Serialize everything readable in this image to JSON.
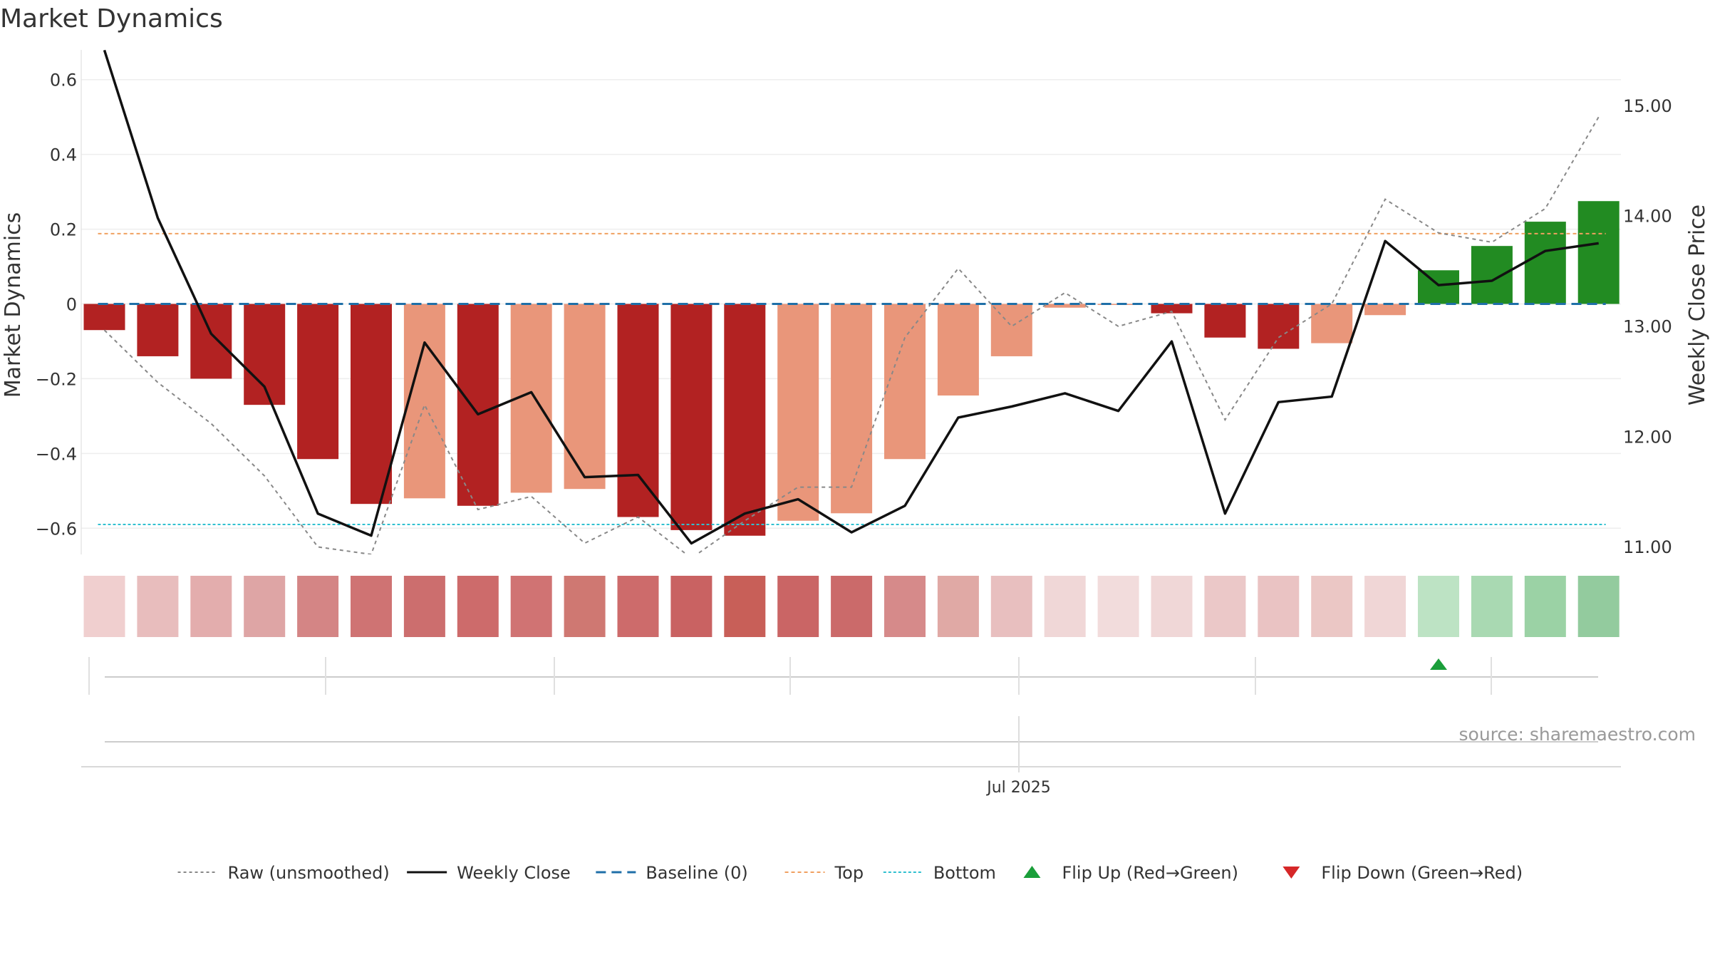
{
  "chart_data": {
    "type": "bar",
    "title": "Market Dynamics",
    "ylabel": "Market Dynamics",
    "y2label": "Weekly Close Price",
    "ylim": [
      -0.67,
      0.67
    ],
    "y2lim": [
      10.93,
      15.47
    ],
    "yticks": [
      {
        "v": 0.6,
        "label": "0.6"
      },
      {
        "v": 0.4,
        "label": "0.4"
      },
      {
        "v": 0.2,
        "label": "0.2"
      },
      {
        "v": 0,
        "label": "0"
      },
      {
        "v": -0.2,
        "label": "−0.2"
      },
      {
        "v": -0.4,
        "label": "−0.4"
      },
      {
        "v": -0.6,
        "label": "−0.6"
      }
    ],
    "y2ticks": [
      {
        "v": 15,
        "label": "15.00"
      },
      {
        "v": 14,
        "label": "14.00"
      },
      {
        "v": 13,
        "label": "13.00"
      },
      {
        "v": 12,
        "label": "12.00"
      },
      {
        "v": 11,
        "label": "11.00"
      }
    ],
    "grid": true,
    "bars": [
      {
        "value": -0.07,
        "color": "#b22222"
      },
      {
        "value": -0.14,
        "color": "#b22222"
      },
      {
        "value": -0.2,
        "color": "#b22222"
      },
      {
        "value": -0.27,
        "color": "#b22222"
      },
      {
        "value": -0.415,
        "color": "#b22222"
      },
      {
        "value": -0.535,
        "color": "#b22222"
      },
      {
        "value": -0.52,
        "color": "#e9967a"
      },
      {
        "value": -0.54,
        "color": "#b22222"
      },
      {
        "value": -0.505,
        "color": "#e9967a"
      },
      {
        "value": -0.495,
        "color": "#e9967a"
      },
      {
        "value": -0.57,
        "color": "#b22222"
      },
      {
        "value": -0.605,
        "color": "#b22222"
      },
      {
        "value": -0.62,
        "color": "#b22222"
      },
      {
        "value": -0.58,
        "color": "#e9967a"
      },
      {
        "value": -0.56,
        "color": "#e9967a"
      },
      {
        "value": -0.415,
        "color": "#e9967a"
      },
      {
        "value": -0.245,
        "color": "#e9967a"
      },
      {
        "value": -0.14,
        "color": "#e9967a"
      },
      {
        "value": -0.01,
        "color": "#e9967a"
      },
      {
        "value": 0.0,
        "color": "#e9967a"
      },
      {
        "value": -0.025,
        "color": "#b22222"
      },
      {
        "value": -0.09,
        "color": "#b22222"
      },
      {
        "value": -0.12,
        "color": "#b22222"
      },
      {
        "value": -0.105,
        "color": "#e9967a"
      },
      {
        "value": -0.03,
        "color": "#e9967a"
      },
      {
        "value": 0.09,
        "color": "#228b22"
      },
      {
        "value": 0.155,
        "color": "#228b22"
      },
      {
        "value": 0.22,
        "color": "#228b22"
      },
      {
        "value": 0.275,
        "color": "#228b22"
      }
    ],
    "raw": [
      -0.07,
      -0.21,
      -0.32,
      -0.46,
      -0.65,
      -0.67,
      -0.27,
      -0.55,
      -0.515,
      -0.64,
      -0.57,
      -0.68,
      -0.58,
      -0.49,
      -0.49,
      -0.09,
      0.095,
      -0.06,
      0.03,
      -0.06,
      -0.02,
      -0.31,
      -0.09,
      0.0,
      0.28,
      0.19,
      0.165,
      0.255,
      0.5
    ],
    "weekly_close": [
      15.5,
      13.98,
      12.93,
      12.45,
      11.3,
      11.1,
      12.85,
      12.2,
      12.4,
      11.63,
      11.65,
      11.03,
      11.3,
      11.43,
      11.13,
      11.37,
      12.17,
      12.27,
      12.39,
      12.23,
      12.86,
      11.3,
      12.31,
      12.36,
      13.77,
      13.37,
      13.41,
      13.68,
      13.75
    ],
    "baseline": 0,
    "top": 0.188,
    "bottom": -0.59,
    "heat_colors": [
      "#f0cfcf",
      "#e8bdbd",
      "#e3adad",
      "#dea5a5",
      "#d48585",
      "#cf7373",
      "#cc6e6e",
      "#cd6b6b",
      "#d07373",
      "#cf7872",
      "#cd6b6b",
      "#c96262",
      "#c85f58",
      "#ca6565",
      "#cb6a6a",
      "#d68a8a",
      "#e0a9a5",
      "#e8bfbf",
      "#f0d7d7",
      "#f2dcdc",
      "#f0d7d7",
      "#ebc8c8",
      "#eac3c3",
      "#ebc7c5",
      "#f0d6d6",
      "#bde3c4",
      "#a9d9b2",
      "#9bd2a5",
      "#93cb9e"
    ],
    "flip_up_index": 25,
    "x_tick_label": "Jul 2025",
    "source": "source: sharemaestro.com",
    "legend": [
      {
        "label": "Raw (unsmoothed)",
        "kind": "line",
        "color": "#888888",
        "dash": "4,4",
        "width": 2
      },
      {
        "label": "Weekly Close",
        "kind": "line",
        "color": "#111111",
        "dash": "",
        "width": 3
      },
      {
        "label": "Baseline (0)",
        "kind": "line",
        "color": "#1f6fa8",
        "dash": "14,8",
        "width": 3
      },
      {
        "label": "Top",
        "kind": "line",
        "color": "#f0a060",
        "dash": "5,4",
        "width": 2
      },
      {
        "label": "Bottom",
        "kind": "line",
        "color": "#30c0d0",
        "dash": "4,3",
        "width": 2
      },
      {
        "label": "Flip Up (Red→Green)",
        "kind": "marker-up",
        "color": "#1a9e3a"
      },
      {
        "label": "Flip Down (Green→Red)",
        "kind": "marker-down",
        "color": "#d62728"
      }
    ]
  }
}
